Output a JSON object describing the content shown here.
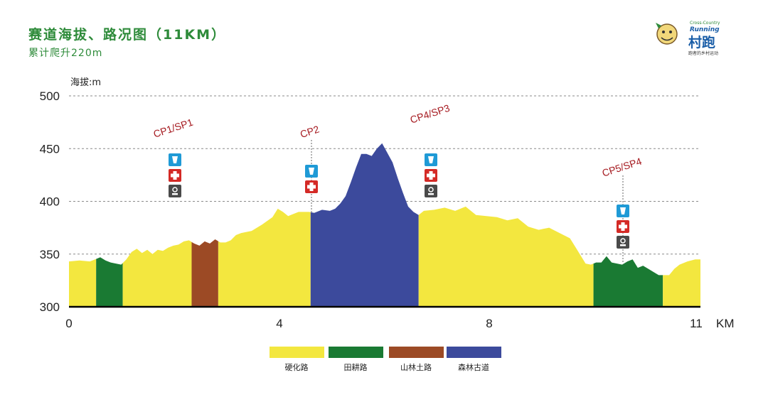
{
  "header": {
    "title": "赛道海拔、路况图（11KM）",
    "subtitle": "累计爬升220m"
  },
  "logo": {
    "small_text": "Cross-Country",
    "running_text": "Running",
    "chinese_text": "村跑",
    "tagline": "跑者的乡村运动"
  },
  "chart_data": {
    "type": "area",
    "title": "赛道海拔、路况图（11KM）",
    "ylabel": "海拔:m",
    "xlabel": "KM",
    "xlim": [
      0,
      11
    ],
    "ylim": [
      300,
      500
    ],
    "xticks": [
      0,
      4,
      8,
      11
    ],
    "yticks": [
      300,
      350,
      400,
      450,
      500
    ],
    "grid": "horizontal dashed",
    "elevation_profile": [
      [
        0,
        343
      ],
      [
        0.2,
        344
      ],
      [
        0.4,
        343
      ],
      [
        0.5,
        345
      ],
      [
        0.6,
        347
      ],
      [
        0.7,
        344
      ],
      [
        0.8,
        342
      ],
      [
        0.9,
        341
      ],
      [
        1.0,
        340
      ],
      [
        1.1,
        345
      ],
      [
        1.2,
        352
      ],
      [
        1.3,
        355
      ],
      [
        1.4,
        351
      ],
      [
        1.5,
        354
      ],
      [
        1.6,
        350
      ],
      [
        1.7,
        354
      ],
      [
        1.8,
        353
      ],
      [
        1.9,
        356
      ],
      [
        2.0,
        358
      ],
      [
        2.1,
        359
      ],
      [
        2.2,
        362
      ],
      [
        2.3,
        363
      ],
      [
        2.4,
        360
      ],
      [
        2.5,
        358
      ],
      [
        2.6,
        362
      ],
      [
        2.7,
        360
      ],
      [
        2.8,
        364
      ],
      [
        2.9,
        361
      ],
      [
        3.0,
        361
      ],
      [
        3.1,
        363
      ],
      [
        3.2,
        368
      ],
      [
        3.3,
        370
      ],
      [
        3.5,
        372
      ],
      [
        3.7,
        378
      ],
      [
        3.9,
        385
      ],
      [
        4.0,
        393
      ],
      [
        4.1,
        390
      ],
      [
        4.2,
        386
      ],
      [
        4.3,
        388
      ],
      [
        4.4,
        390
      ],
      [
        4.6,
        390
      ],
      [
        4.7,
        389
      ],
      [
        4.85,
        392
      ],
      [
        5.0,
        391
      ],
      [
        5.1,
        393
      ],
      [
        5.2,
        398
      ],
      [
        5.3,
        405
      ],
      [
        5.4,
        418
      ],
      [
        5.5,
        432
      ],
      [
        5.6,
        445
      ],
      [
        5.7,
        445
      ],
      [
        5.8,
        443
      ],
      [
        5.9,
        450
      ],
      [
        6.0,
        455
      ],
      [
        6.1,
        446
      ],
      [
        6.2,
        437
      ],
      [
        6.3,
        422
      ],
      [
        6.4,
        408
      ],
      [
        6.5,
        395
      ],
      [
        6.6,
        390
      ],
      [
        6.7,
        387
      ],
      [
        6.8,
        391
      ],
      [
        7.0,
        392
      ],
      [
        7.2,
        394
      ],
      [
        7.4,
        391
      ],
      [
        7.6,
        395
      ],
      [
        7.8,
        387
      ],
      [
        8.0,
        386
      ],
      [
        8.2,
        385
      ],
      [
        8.4,
        382
      ],
      [
        8.6,
        384
      ],
      [
        8.8,
        376
      ],
      [
        9.0,
        373
      ],
      [
        9.2,
        375
      ],
      [
        9.4,
        370
      ],
      [
        9.6,
        365
      ],
      [
        9.7,
        357
      ],
      [
        9.8,
        349
      ],
      [
        9.9,
        341
      ],
      [
        10.0,
        340
      ],
      [
        10.1,
        342
      ],
      [
        10.2,
        342
      ],
      [
        10.3,
        348
      ],
      [
        10.4,
        342
      ],
      [
        10.5,
        341
      ],
      [
        10.6,
        340
      ],
      [
        10.7,
        343
      ],
      [
        10.8,
        345
      ],
      [
        10.9,
        337
      ],
      [
        11.0,
        339
      ],
      [
        11.1,
        336
      ],
      [
        11.2,
        333
      ],
      [
        11.3,
        330
      ],
      [
        11.4,
        330
      ],
      [
        11.5,
        330
      ],
      [
        11.6,
        336
      ],
      [
        11.7,
        340
      ],
      [
        11.85,
        343
      ],
      [
        12.0,
        345
      ],
      [
        12.1,
        345
      ]
    ],
    "segments": [
      {
        "from": 0,
        "to": 0.52,
        "surface": "硬化路"
      },
      {
        "from": 0.52,
        "to": 1.03,
        "surface": "田耕路"
      },
      {
        "from": 1.03,
        "to": 2.35,
        "surface": "硬化路"
      },
      {
        "from": 2.35,
        "to": 2.86,
        "surface": "山林土路"
      },
      {
        "from": 2.86,
        "to": 4.63,
        "surface": "硬化路"
      },
      {
        "from": 4.63,
        "to": 6.7,
        "surface": "森林古道"
      },
      {
        "from": 6.7,
        "to": 10.05,
        "surface": "硬化路"
      },
      {
        "from": 10.05,
        "to": 11.38,
        "surface": "田耕路"
      },
      {
        "from": 11.38,
        "to": 12.1,
        "surface": "硬化路"
      }
    ],
    "checkpoints": [
      {
        "label": "CP1/SP1",
        "km": 2.0,
        "icons": [
          "drink-icon",
          "first-aid-icon",
          "toilet-icon"
        ]
      },
      {
        "label": "CP2",
        "km": 4.63,
        "icons": [
          "drink-icon",
          "first-aid-icon"
        ]
      },
      {
        "label": "CP4/SP3",
        "km": 6.9,
        "icons": [
          "drink-icon",
          "first-aid-icon",
          "toilet-icon"
        ]
      },
      {
        "label": "CP5/SP4",
        "km": 10.5,
        "icons": [
          "drink-icon",
          "first-aid-icon",
          "toilet-icon"
        ]
      }
    ],
    "legend": [
      {
        "label": "硬化路",
        "color": "#f3e73f"
      },
      {
        "label": "田耕路",
        "color": "#1a7a33"
      },
      {
        "label": "山林土路",
        "color": "#9c4a25"
      },
      {
        "label": "森林古道",
        "color": "#3c4a9c"
      }
    ]
  }
}
